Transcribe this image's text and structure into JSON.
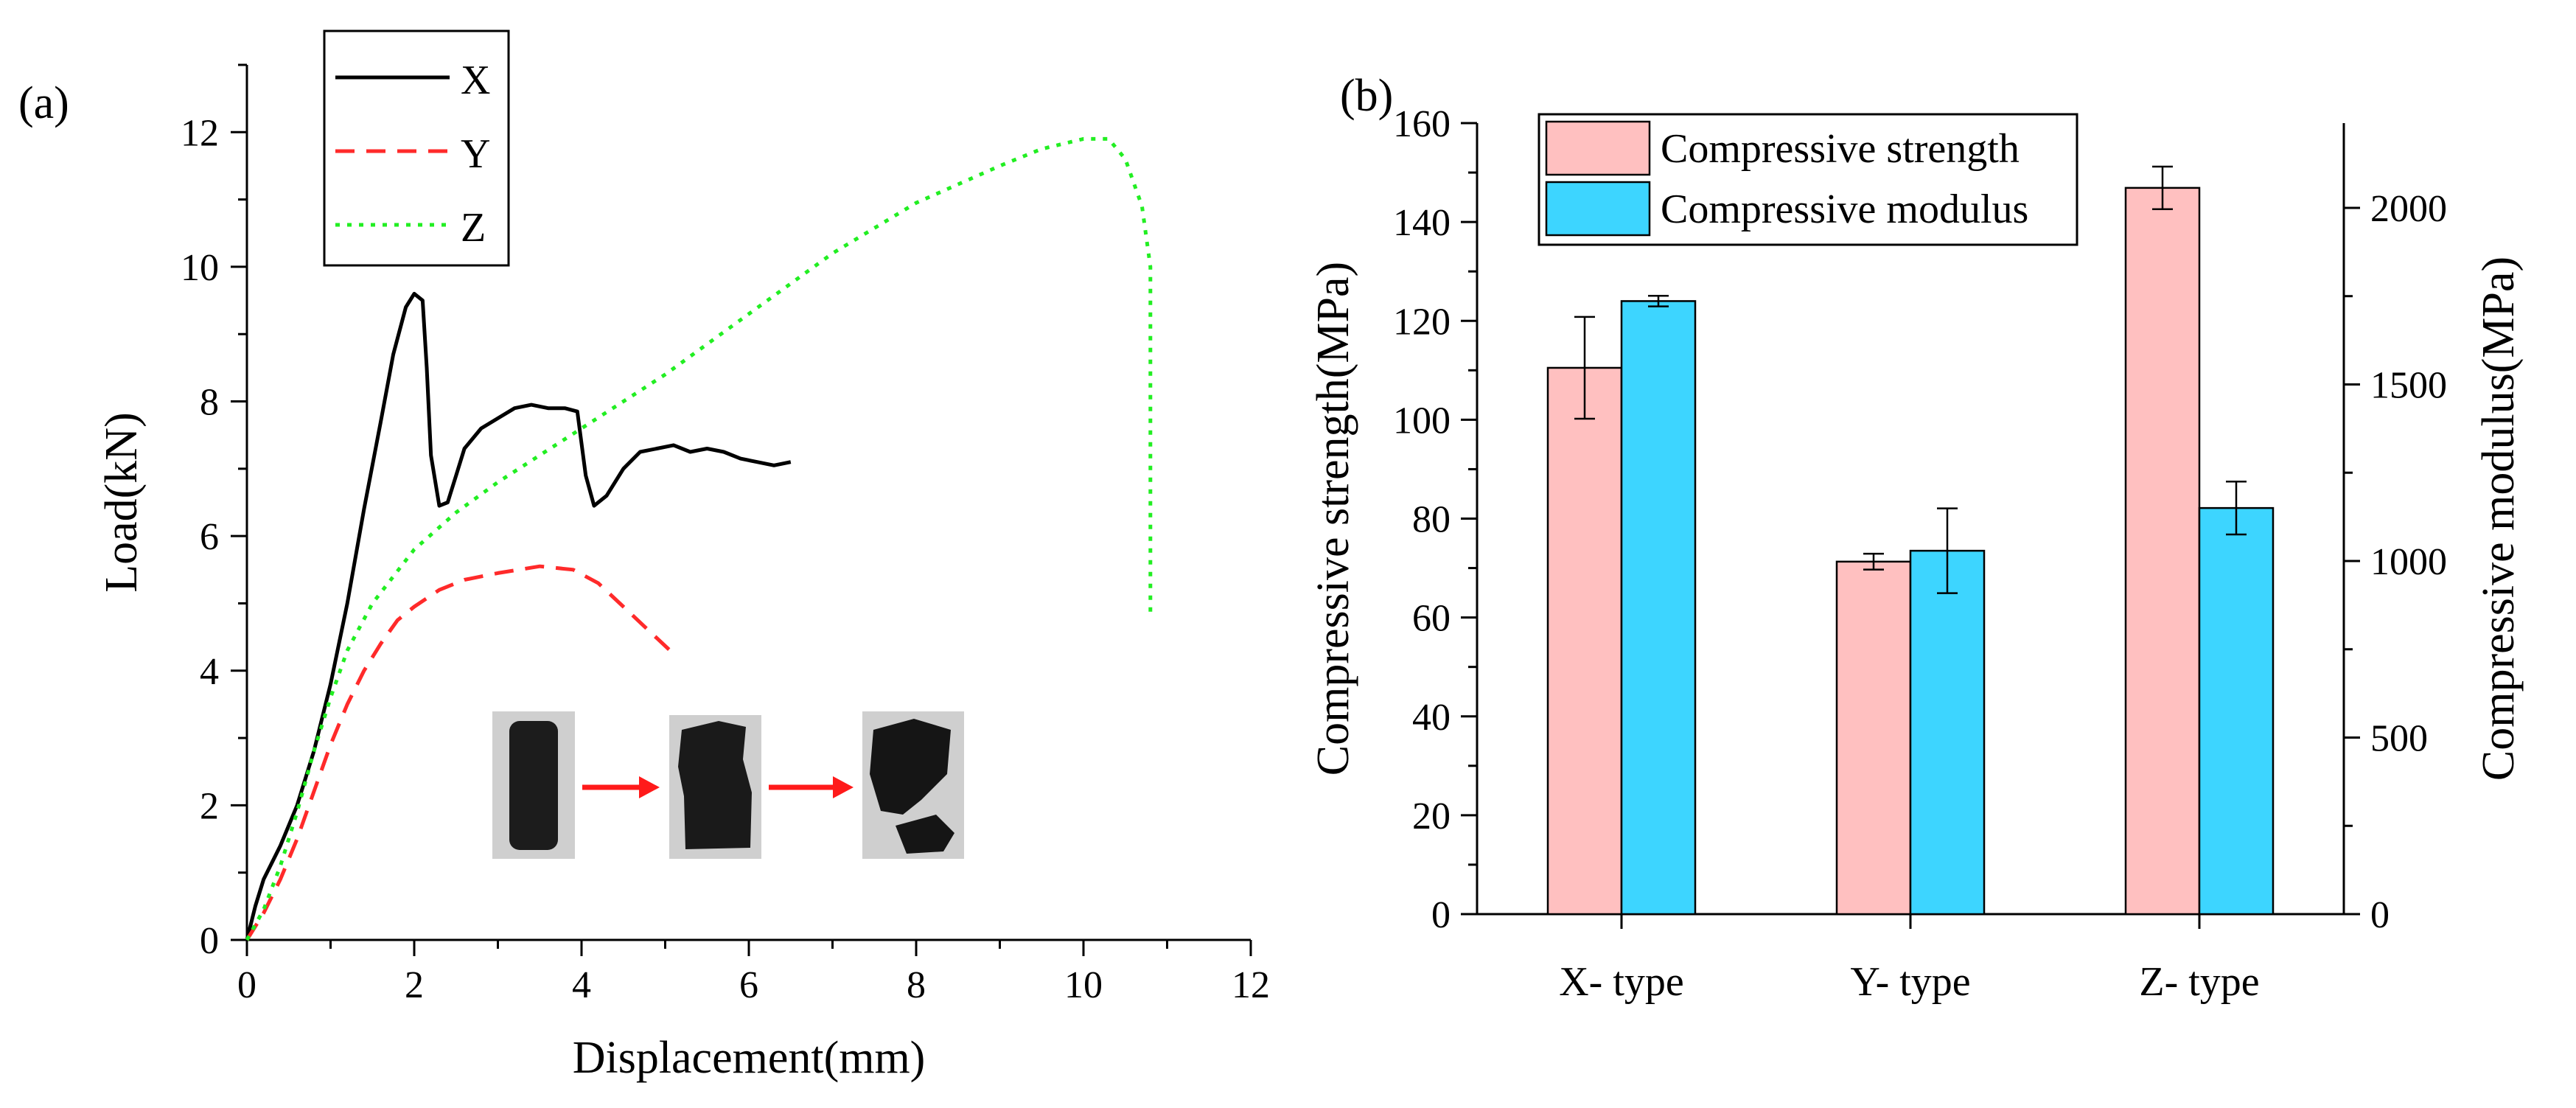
{
  "chart_data": [
    {
      "panel_label": "(a)",
      "type": "line",
      "xlabel": "Displacement(mm)",
      "ylabel": "Load(kN)",
      "xlim": [
        0,
        12
      ],
      "ylim": [
        0,
        13
      ],
      "xticks": [
        "0",
        "2",
        "4",
        "6",
        "8",
        "10",
        "12"
      ],
      "yticks": [
        "0",
        "2",
        "4",
        "6",
        "8",
        "10",
        "12"
      ],
      "legend_position": "top-left",
      "grid": false,
      "series": [
        {
          "name": "X",
          "color": "#000000",
          "style": "solid",
          "points": [
            [
              0,
              0
            ],
            [
              0.1,
              0.5
            ],
            [
              0.2,
              0.9
            ],
            [
              0.4,
              1.4
            ],
            [
              0.6,
              2.0
            ],
            [
              0.8,
              2.8
            ],
            [
              1.0,
              3.8
            ],
            [
              1.2,
              5.0
            ],
            [
              1.4,
              6.4
            ],
            [
              1.6,
              7.7
            ],
            [
              1.75,
              8.7
            ],
            [
              1.9,
              9.4
            ],
            [
              2.0,
              9.6
            ],
            [
              2.1,
              9.5
            ],
            [
              2.15,
              8.5
            ],
            [
              2.2,
              7.2
            ],
            [
              2.3,
              6.45
            ],
            [
              2.4,
              6.5
            ],
            [
              2.5,
              6.9
            ],
            [
              2.6,
              7.3
            ],
            [
              2.8,
              7.6
            ],
            [
              3.0,
              7.75
            ],
            [
              3.2,
              7.9
            ],
            [
              3.4,
              7.95
            ],
            [
              3.6,
              7.9
            ],
            [
              3.8,
              7.9
            ],
            [
              3.95,
              7.85
            ],
            [
              4.05,
              6.9
            ],
            [
              4.15,
              6.45
            ],
            [
              4.3,
              6.6
            ],
            [
              4.5,
              7.0
            ],
            [
              4.7,
              7.25
            ],
            [
              4.9,
              7.3
            ],
            [
              5.1,
              7.35
            ],
            [
              5.3,
              7.25
            ],
            [
              5.5,
              7.3
            ],
            [
              5.7,
              7.25
            ],
            [
              5.9,
              7.15
            ],
            [
              6.1,
              7.1
            ],
            [
              6.3,
              7.05
            ],
            [
              6.5,
              7.1
            ]
          ]
        },
        {
          "name": "Y",
          "color": "#ff2a2a",
          "style": "dashed",
          "points": [
            [
              0,
              0
            ],
            [
              0.2,
              0.4
            ],
            [
              0.4,
              0.9
            ],
            [
              0.6,
              1.5
            ],
            [
              0.8,
              2.2
            ],
            [
              1.0,
              2.9
            ],
            [
              1.2,
              3.5
            ],
            [
              1.4,
              4.0
            ],
            [
              1.6,
              4.4
            ],
            [
              1.8,
              4.75
            ],
            [
              2.0,
              4.95
            ],
            [
              2.3,
              5.2
            ],
            [
              2.6,
              5.35
            ],
            [
              3.0,
              5.45
            ],
            [
              3.5,
              5.55
            ],
            [
              3.9,
              5.5
            ],
            [
              4.2,
              5.3
            ],
            [
              4.5,
              4.95
            ],
            [
              4.8,
              4.6
            ],
            [
              5.1,
              4.25
            ]
          ]
        },
        {
          "name": "Z",
          "color": "#22ee22",
          "style": "dotted",
          "points": [
            [
              0,
              0
            ],
            [
              0.2,
              0.45
            ],
            [
              0.4,
              1.1
            ],
            [
              0.6,
              1.9
            ],
            [
              0.8,
              2.8
            ],
            [
              1.0,
              3.6
            ],
            [
              1.2,
              4.3
            ],
            [
              1.5,
              5.0
            ],
            [
              2.0,
              5.8
            ],
            [
              2.5,
              6.35
            ],
            [
              3.0,
              6.8
            ],
            [
              4.0,
              7.6
            ],
            [
              5.0,
              8.4
            ],
            [
              6.0,
              9.3
            ],
            [
              7.0,
              10.2
            ],
            [
              8.0,
              10.95
            ],
            [
              9.0,
              11.5
            ],
            [
              9.5,
              11.75
            ],
            [
              10.0,
              11.9
            ],
            [
              10.3,
              11.9
            ],
            [
              10.5,
              11.6
            ],
            [
              10.7,
              10.9
            ],
            [
              10.8,
              10.0
            ],
            [
              10.8,
              4.8
            ]
          ]
        }
      ],
      "inset": {
        "description_arrows": 2,
        "arrow_color": "#ff1a1a"
      }
    },
    {
      "panel_label": "(b)",
      "type": "bar",
      "categories": [
        "X- type",
        "Y- type",
        "Z- type"
      ],
      "ylabel": "Compressive strength(MPa)",
      "y2label": "Compressive modulus(MPa)",
      "ylim": [
        0,
        160
      ],
      "y2lim": [
        0,
        2240
      ],
      "yticks": [
        "0",
        "20",
        "40",
        "60",
        "80",
        "100",
        "120",
        "140",
        "160"
      ],
      "y2ticks": [
        "0",
        "500",
        "1000",
        "1500",
        "2000"
      ],
      "legend_position": "top-left",
      "grid": false,
      "series": [
        {
          "name": "Compressive strength",
          "axis": "left",
          "color": "#ffc0c0",
          "values": [
            110.5,
            71.3,
            146.9
          ],
          "errors": [
            10.3,
            1.6,
            4.3
          ]
        },
        {
          "name": "Compressive modulus",
          "axis": "right",
          "color": "#3dd5ff",
          "values": [
            1736,
            1029,
            1150
          ],
          "errors": [
            15,
            120,
            75
          ]
        }
      ]
    }
  ]
}
